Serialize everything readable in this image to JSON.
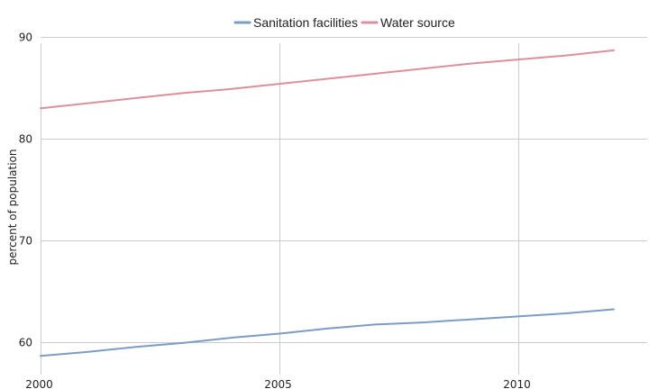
{
  "chart_data": {
    "type": "line",
    "title": "",
    "xlabel": "",
    "ylabel": "percent of population",
    "x": [
      2000,
      2001,
      2002,
      2003,
      2004,
      2005,
      2006,
      2007,
      2008,
      2009,
      2010,
      2011,
      2012
    ],
    "series": [
      {
        "name": "Sanitation facilities",
        "color": "#7b9cc4",
        "values": [
          58.6,
          59.0,
          59.5,
          59.9,
          60.4,
          60.8,
          61.3,
          61.7,
          61.9,
          62.2,
          62.5,
          62.8,
          63.2
        ]
      },
      {
        "name": "Water source",
        "color": "#dc8f9c",
        "values": [
          83.0,
          83.5,
          84.0,
          84.5,
          84.9,
          85.4,
          85.9,
          86.4,
          86.9,
          87.4,
          87.8,
          88.2,
          88.7
        ]
      }
    ],
    "xticks": [
      2000,
      2005,
      2010
    ],
    "yticks": [
      60,
      70,
      80,
      90
    ],
    "xlim": [
      2000,
      2012.7
    ],
    "ylim": [
      57.3,
      91
    ],
    "grid": true,
    "legend": "top-center"
  }
}
